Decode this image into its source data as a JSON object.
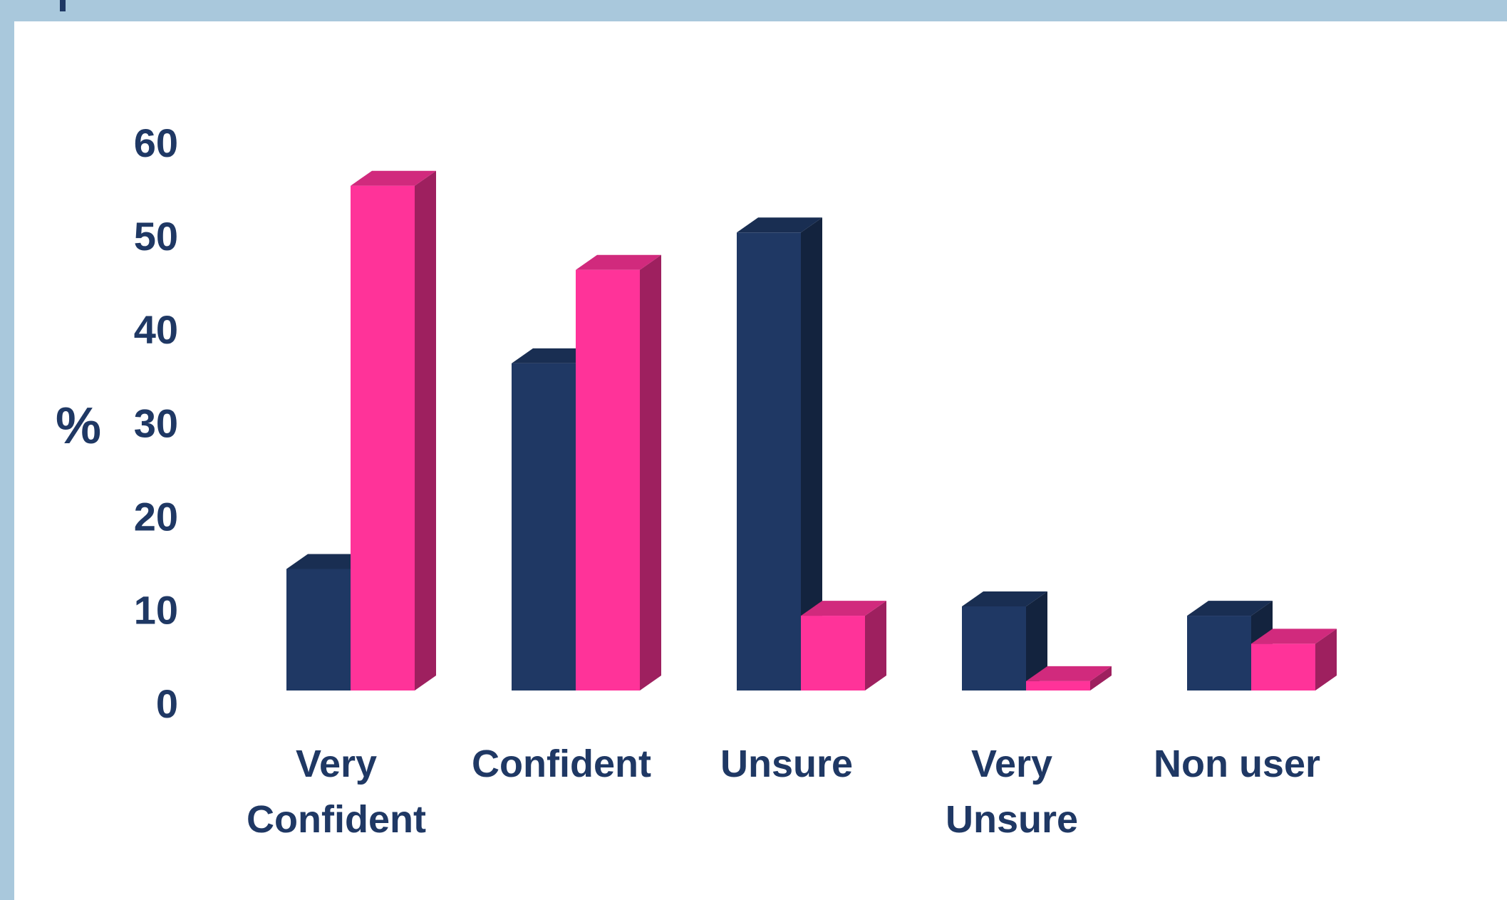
{
  "chart_data": {
    "type": "bar3d",
    "y_label": "%",
    "categories": [
      "Very\nConfident",
      "Confident",
      "Unsure",
      "Very\nUnsure",
      "Non user"
    ],
    "series": [
      {
        "color": "#1f3864",
        "values": [
          13,
          35,
          49,
          9,
          8
        ]
      },
      {
        "color": "#ff3399",
        "values": [
          54,
          45,
          8,
          1,
          5
        ]
      }
    ],
    "ylim": [
      0,
      60
    ],
    "yticks": [
      0,
      10,
      20,
      30,
      40,
      50,
      60
    ],
    "grid": false
  }
}
